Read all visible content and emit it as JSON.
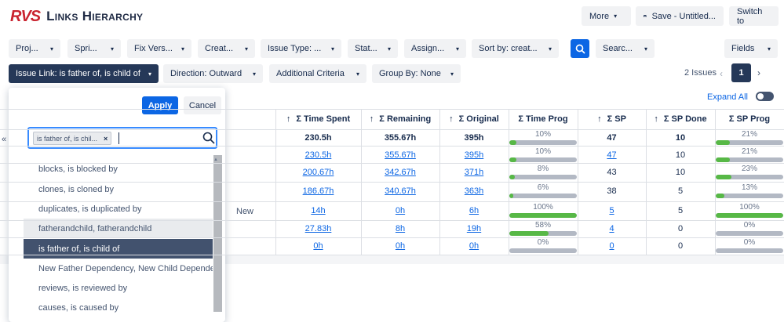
{
  "app": {
    "logo_mark": "RVS",
    "title": "Links Hierarchy"
  },
  "header_buttons": {
    "more": "More",
    "save": "Save - Untitled...",
    "switch": "Switch to"
  },
  "filters": [
    {
      "label": "Proj...",
      "name": "filter-project"
    },
    {
      "label": "Spri...",
      "name": "filter-sprint"
    },
    {
      "label": "Fix Vers...",
      "name": "filter-fix-version"
    },
    {
      "label": "Creat...",
      "name": "filter-created"
    },
    {
      "label": "Issue Type: ...",
      "name": "filter-issue-type"
    },
    {
      "label": "Stat...",
      "name": "filter-status"
    },
    {
      "label": "Assign...",
      "name": "filter-assignee"
    },
    {
      "label": "Sort by: creat...",
      "name": "sort-by"
    },
    {
      "label": "Searc...",
      "name": "search-filter"
    },
    {
      "label": "Fields",
      "name": "fields-button"
    }
  ],
  "row2": {
    "issue_link": "Issue Link: is father of, is child of",
    "direction": "Direction: Outward",
    "criteria": "Additional Criteria",
    "group_by": "Group By: None"
  },
  "pagination": {
    "count": "2 Issues",
    "current": "1"
  },
  "expand_all": "Expand All",
  "columns": [
    "Σ Time Spent",
    "Σ Remaining",
    "Σ Original",
    "Σ Time Prog",
    "Σ SP",
    "Σ SP Done",
    "Σ SP Prog"
  ],
  "rows": [
    {
      "spent": "230.5h",
      "remaining": "355.67h",
      "original": "395h",
      "time_prog": "10%",
      "sp": "47",
      "sp_done": "10",
      "sp_prog": "21%",
      "total": true
    },
    {
      "spent": "230.5h",
      "remaining": "355.67h",
      "original": "395h",
      "time_prog": "10%",
      "sp": "47",
      "sp_done": "10",
      "sp_prog": "21%"
    },
    {
      "spent": "200.67h",
      "remaining": "342.67h",
      "original": "371h",
      "time_prog": "8%",
      "sp": "43",
      "sp_done": "10",
      "sp_prog": "23%"
    },
    {
      "spent": "186.67h",
      "remaining": "340.67h",
      "original": "363h",
      "time_prog": "6%",
      "sp": "38",
      "sp_done": "5",
      "sp_prog": "13%"
    },
    {
      "spent": "14h",
      "remaining": "0h",
      "original": "6h",
      "time_prog": "100%",
      "sp": "5",
      "sp_done": "5",
      "sp_prog": "100%"
    },
    {
      "spent": "27.83h",
      "remaining": "8h",
      "original": "19h",
      "time_prog": "58%",
      "sp": "4",
      "sp_done": "0",
      "sp_prog": "0%"
    },
    {
      "spent": "0h",
      "remaining": "0h",
      "original": "0h",
      "time_prog": "0%",
      "sp": "0",
      "sp_done": "0",
      "sp_prog": "0%"
    }
  ],
  "left_fragments": {
    "collapse": "«",
    "new": "New"
  },
  "dropdown": {
    "apply": "Apply",
    "cancel": "Cancel",
    "selected_tag": "is father of, is chil...",
    "options": [
      "blocks, is blocked by",
      "clones, is cloned by",
      "duplicates, is duplicated by",
      "fatherandchild, fatherandchild",
      "is father of, is child of",
      "New Father Dependency, New Child Depende...",
      "reviews, is reviewed by",
      "causes, is caused by"
    ]
  },
  "colors": {
    "accent": "#0c66e4",
    "selected_dark": "#253858",
    "progress_green": "#57b846",
    "logo_red": "#c9232f"
  }
}
